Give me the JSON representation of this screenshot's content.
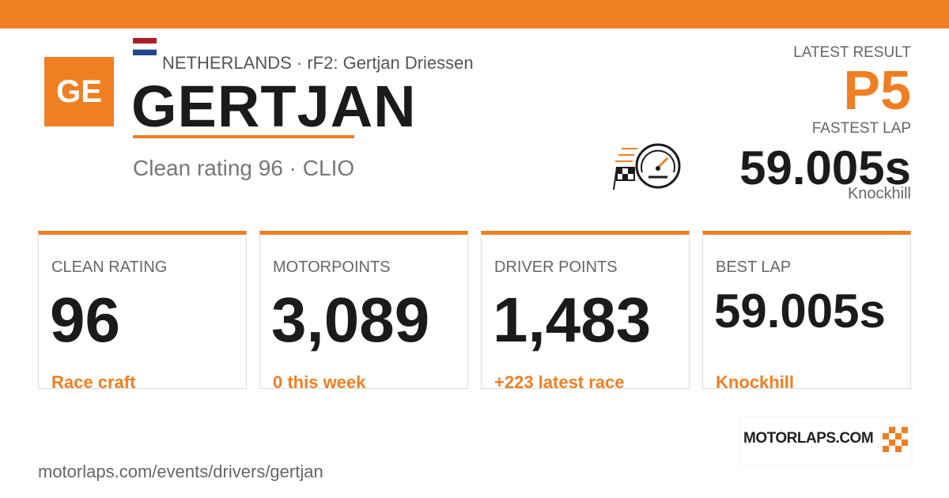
{
  "header": {
    "initials": "GE",
    "meta": "NETHERLANDS · rF2: Gertjan Driessen",
    "name": "GERTJAN",
    "subtitle": "Clean rating 96 · CLIO"
  },
  "latest": {
    "result_label": "LATEST RESULT",
    "result": "P5",
    "lap_label": "FASTEST LAP",
    "lap": "59.005s",
    "track": "Knockhill"
  },
  "cards": [
    {
      "label": "CLEAN RATING",
      "value": "96",
      "note": "Race craft"
    },
    {
      "label": "MOTORPOINTS",
      "value": "3,089",
      "note": "0 this week"
    },
    {
      "label": "DRIVER POINTS",
      "value": "1,483",
      "note": "+223 latest race"
    },
    {
      "label": "BEST LAP",
      "value": "59.005s",
      "note": "Knockhill"
    }
  ],
  "footer": {
    "url": "motorlaps.com/events/drivers/gertjan",
    "logo": "MOTORLAPS.COM"
  }
}
